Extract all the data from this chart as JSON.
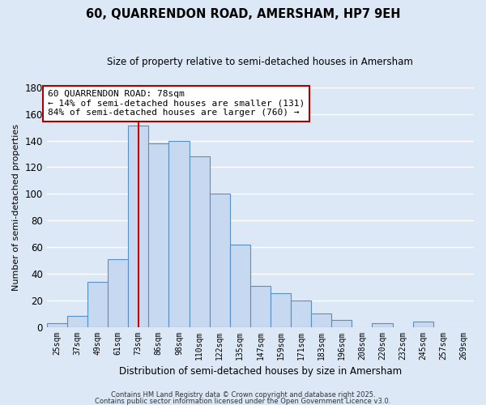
{
  "title": "60, QUARRENDON ROAD, AMERSHAM, HP7 9EH",
  "subtitle": "Size of property relative to semi-detached houses in Amersham",
  "xlabel": "Distribution of semi-detached houses by size in Amersham",
  "ylabel": "Number of semi-detached properties",
  "categories": [
    "25sqm",
    "37sqm",
    "49sqm",
    "61sqm",
    "73sqm",
    "86sqm",
    "98sqm",
    "110sqm",
    "122sqm",
    "135sqm",
    "147sqm",
    "159sqm",
    "171sqm",
    "183sqm",
    "196sqm",
    "208sqm",
    "220sqm",
    "232sqm",
    "245sqm",
    "257sqm",
    "269sqm"
  ],
  "values": [
    3,
    8,
    34,
    51,
    151,
    138,
    140,
    128,
    100,
    62,
    31,
    25,
    20,
    10,
    5,
    0,
    3,
    0,
    4,
    0,
    0
  ],
  "bar_color": "#c6d9f0",
  "bar_edge_color": "#5a8fc3",
  "vline_x": 4,
  "vline_color": "#cc0000",
  "annotation_text": "60 QUARRENDON ROAD: 78sqm\n← 14% of semi-detached houses are smaller (131)\n84% of semi-detached houses are larger (760) →",
  "annotation_box_color": "white",
  "annotation_box_edge": "#aa0000",
  "ylim": [
    0,
    180
  ],
  "yticks": [
    0,
    20,
    40,
    60,
    80,
    100,
    120,
    140,
    160,
    180
  ],
  "footer1": "Contains HM Land Registry data © Crown copyright and database right 2025.",
  "footer2": "Contains public sector information licensed under the Open Government Licence v3.0.",
  "background_color": "#dce8f5",
  "grid_color": "#ffffff"
}
